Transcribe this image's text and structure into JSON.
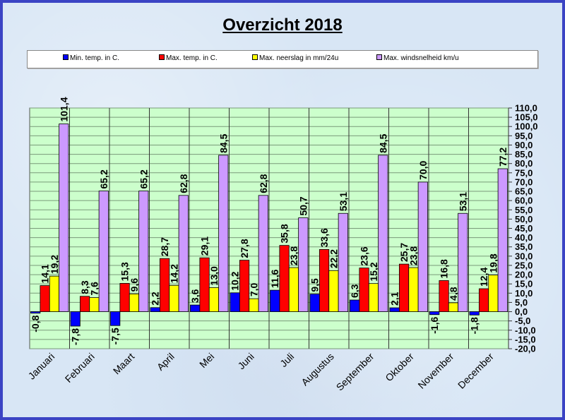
{
  "chart_data": {
    "type": "bar",
    "title": "Overzicht 2018",
    "xlabel": "",
    "ylabel": "",
    "ylim": [
      -20,
      110
    ],
    "ytick_step": 5,
    "grid": true,
    "legend_position": "top",
    "categories": [
      "Januari",
      "Februari",
      "Maart",
      "April",
      "Mei",
      "Juni",
      "Juli",
      "Augustus",
      "September",
      "Oktober",
      "November",
      "December"
    ],
    "series": [
      {
        "name": "Min. temp. in C.",
        "color": "#0000ff",
        "values": [
          -0.8,
          -7.8,
          -7.5,
          2.2,
          3.6,
          10.2,
          11.6,
          9.5,
          6.3,
          2.1,
          -1.6,
          -1.8
        ]
      },
      {
        "name": "Max. temp. in C.",
        "color": "#ff0000",
        "values": [
          14.1,
          8.3,
          15.3,
          28.7,
          29.1,
          27.8,
          35.8,
          33.6,
          23.6,
          25.7,
          16.8,
          12.4
        ]
      },
      {
        "name": "Max. neerslag in mm/24u",
        "color": "#ffff00",
        "values": [
          19.2,
          7.6,
          9.6,
          14.2,
          13.0,
          7.0,
          23.8,
          22.2,
          15.2,
          23.8,
          4.8,
          19.8
        ]
      },
      {
        "name": "Max. windsnelheid km/u",
        "color": "#cc99ff",
        "values": [
          101.4,
          65.2,
          65.2,
          62.8,
          84.5,
          62.8,
          50.7,
          53.1,
          84.5,
          70.0,
          53.1,
          77.2
        ]
      }
    ],
    "plot_background": "#ccffcc",
    "frame_border_color": "#3b44c4"
  }
}
